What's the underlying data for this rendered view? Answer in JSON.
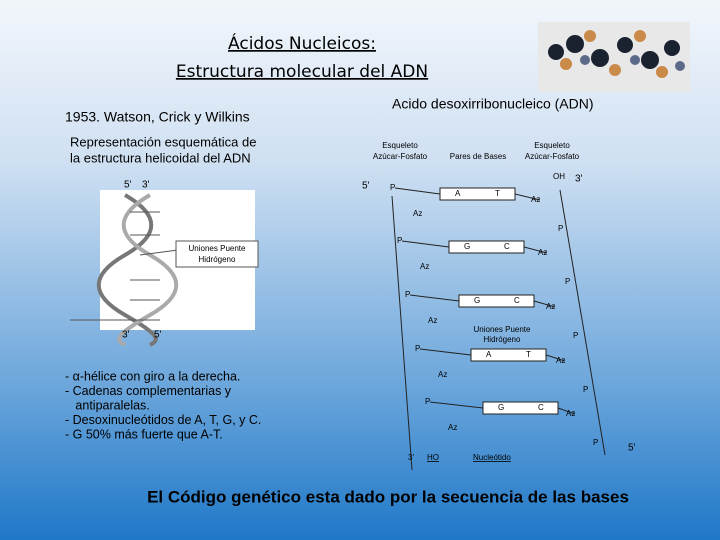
{
  "header": {
    "title_line1": "Ácidos Nucleicos:",
    "title_line2": "Estructura molecular del ADN"
  },
  "left": {
    "authors": "1953. Watson, Crick y Wilkins",
    "caption_line1": "Representación esquemática de",
    "caption_line2": "la estructura helicoidal del ADN",
    "helix_labels": {
      "top_left": "5'",
      "top_right": "3'",
      "bottom_left": "3'",
      "bottom_right": "5'",
      "bonds_line1": "Uniones Puente",
      "bonds_line2": "Hidrógeno"
    },
    "bullets": [
      "- α-hélice con giro a la derecha.",
      "- Cadenas complementarias y",
      "   antiparalelas.",
      "- Desoxinucleótidos de A, T, G, y C.",
      "- G 50% más fuerte que A-T."
    ]
  },
  "diagram": {
    "title": "Acido desoxirribonucleico (ADN)",
    "headers": {
      "left_line1": "Esqueleto",
      "left_line2": "Azúcar-Fosfato",
      "middle": "Pares de Bases",
      "right_line1": "Esqueleto",
      "right_line2": "Azúcar-Fosfato"
    },
    "top": {
      "left_end": "5'",
      "oh": "OH",
      "right_end": "3'"
    },
    "rungs": [
      {
        "p_left": "P",
        "base_left": "A",
        "base_right": "T",
        "az_right": "Az",
        "az_left": "Az",
        "p_right": "P"
      },
      {
        "p_left": "P",
        "base_left": "G",
        "base_right": "C",
        "az_right": "Az",
        "az_left": "Az",
        "p_right": "P"
      },
      {
        "p_left": "P",
        "base_left": "G",
        "base_right": "C",
        "az_right": "Az",
        "az_left": "Az",
        "p_right": "P"
      },
      {
        "p_left": "P",
        "base_left": "A",
        "base_right": "T",
        "az_right": "Az",
        "az_left": "Az",
        "p_right": "P"
      },
      {
        "p_left": "P",
        "base_left": "G",
        "base_right": "C",
        "az_right": "Az",
        "az_left": "Az",
        "p_right": "P"
      }
    ],
    "bonds_line1": "Uniones Puente",
    "bonds_line2": "Hidrógeno",
    "bottom": {
      "left_end": "3'",
      "ho": "HO",
      "nucleotide": "Nucleótido",
      "right_end": "5'"
    }
  },
  "footer": "El Código genético esta dado por la secuencia de las bases"
}
